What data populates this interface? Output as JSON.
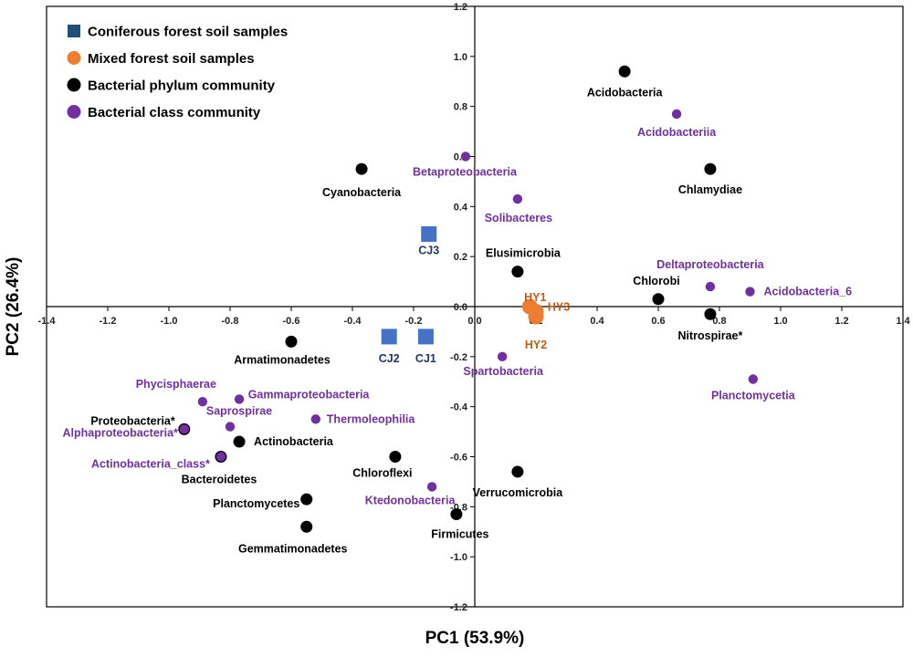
{
  "chart_data": {
    "type": "scatter",
    "title": "",
    "xlabel": "PC1 (53.9%)",
    "ylabel": "PC2 (26.4%)",
    "xlim": [
      -1.4,
      1.4
    ],
    "ylim": [
      -1.2,
      1.2
    ],
    "x_ticks": [
      "-1.4",
      "-1.2",
      "-1.0",
      "-0.8",
      "-0.6",
      "-0.4",
      "-0.2",
      "0.0",
      "0.2",
      "0.4",
      "0.6",
      "0.8",
      "1.0",
      "1.2",
      "1.4"
    ],
    "y_ticks": [
      "-1.2",
      "-1.0",
      "-0.8",
      "-0.6",
      "-0.4",
      "-0.2",
      "0.0",
      "0.2",
      "0.4",
      "0.6",
      "0.8",
      "1.0",
      "1.2"
    ],
    "grid": false,
    "legend_position": "top-left",
    "colors": {
      "coniferous": "#4472c4",
      "coniferous_legend": "#1f4e79",
      "coniferous_label": "#1f3864",
      "mixed": "#ed7d31",
      "mixed_label": "#c55a11",
      "phylum": "#000000",
      "class": "#7030a0"
    },
    "legend": [
      {
        "series": "coniferous",
        "label": "Coniferous forest soil samples"
      },
      {
        "series": "mixed",
        "label": "Mixed forest soil samples"
      },
      {
        "series": "phylum",
        "label": "Bacterial phylum community"
      },
      {
        "series": "class",
        "label": "Bacterial class community"
      }
    ],
    "series": [
      {
        "name": "Coniferous forest soil samples",
        "key": "coniferous",
        "marker": "square",
        "points": [
          {
            "label": "CJ3",
            "x": -0.15,
            "y": 0.29
          },
          {
            "label": "CJ2",
            "x": -0.28,
            "y": -0.12
          },
          {
            "label": "CJ1",
            "x": -0.16,
            "y": -0.12
          }
        ]
      },
      {
        "name": "Mixed forest soil samples",
        "key": "mixed",
        "marker": "circle",
        "points": [
          {
            "label": "HY1",
            "x": 0.18,
            "y": 0.0
          },
          {
            "label": "HY3",
            "x": 0.2,
            "y": -0.02
          },
          {
            "label": "HY2",
            "x": 0.2,
            "y": -0.04
          }
        ]
      },
      {
        "name": "Bacterial phylum community",
        "key": "phylum",
        "marker": "circle",
        "points": [
          {
            "label": "Acidobacteria",
            "x": 0.49,
            "y": 0.94
          },
          {
            "label": "Cyanobacteria",
            "x": -0.37,
            "y": 0.55
          },
          {
            "label": "Chlamydiae",
            "x": 0.77,
            "y": 0.55
          },
          {
            "label": "Elusimicrobia",
            "x": 0.14,
            "y": 0.14
          },
          {
            "label": "Chlorobi",
            "x": 0.6,
            "y": 0.03
          },
          {
            "label": "Nitrospirae*",
            "x": 0.77,
            "y": -0.03
          },
          {
            "label": "Armatimonadetes",
            "x": -0.6,
            "y": -0.14
          },
          {
            "label": "Proteobacteria*",
            "x": -0.95,
            "y": -0.49
          },
          {
            "label": "Actinobacteria",
            "x": -0.77,
            "y": -0.54
          },
          {
            "label": "Bacteroidetes",
            "x": -0.83,
            "y": -0.6
          },
          {
            "label": "Chloroflexi",
            "x": -0.26,
            "y": -0.6
          },
          {
            "label": "Verrucomicrobia",
            "x": 0.14,
            "y": -0.66
          },
          {
            "label": "Planctomycetes",
            "x": -0.55,
            "y": -0.77
          },
          {
            "label": "Firmicutes",
            "x": -0.06,
            "y": -0.83
          },
          {
            "label": "Gemmatimonadetes",
            "x": -0.55,
            "y": -0.88
          }
        ]
      },
      {
        "name": "Bacterial class community",
        "key": "class",
        "marker": "circle",
        "points": [
          {
            "label": "Acidobacteriia",
            "x": 0.66,
            "y": 0.77
          },
          {
            "label": "Betaproteobacteria",
            "x": -0.03,
            "y": 0.6
          },
          {
            "label": "Solibacteres",
            "x": 0.14,
            "y": 0.43
          },
          {
            "label": "Deltaproteobacteria",
            "x": 0.77,
            "y": 0.08
          },
          {
            "label": "Acidobacteria_6",
            "x": 0.9,
            "y": 0.06
          },
          {
            "label": "Spartobacteria",
            "x": 0.09,
            "y": -0.2
          },
          {
            "label": "Planctomycetia",
            "x": 0.91,
            "y": -0.29
          },
          {
            "label": "Phycisphaerae",
            "x": -0.89,
            "y": -0.38
          },
          {
            "label": "Gammaproteobacteria",
            "x": -0.77,
            "y": -0.37
          },
          {
            "label": "Saprospirae",
            "x": -0.8,
            "y": -0.48
          },
          {
            "label": "Thermoleophilia",
            "x": -0.52,
            "y": -0.45
          },
          {
            "label": "Alphaproteobacteria*",
            "x": -0.95,
            "y": -0.49
          },
          {
            "label": "Actinobacteria_class*",
            "x": -0.83,
            "y": -0.6
          },
          {
            "label": "Ktedonobacteria",
            "x": -0.14,
            "y": -0.72
          }
        ]
      }
    ]
  }
}
